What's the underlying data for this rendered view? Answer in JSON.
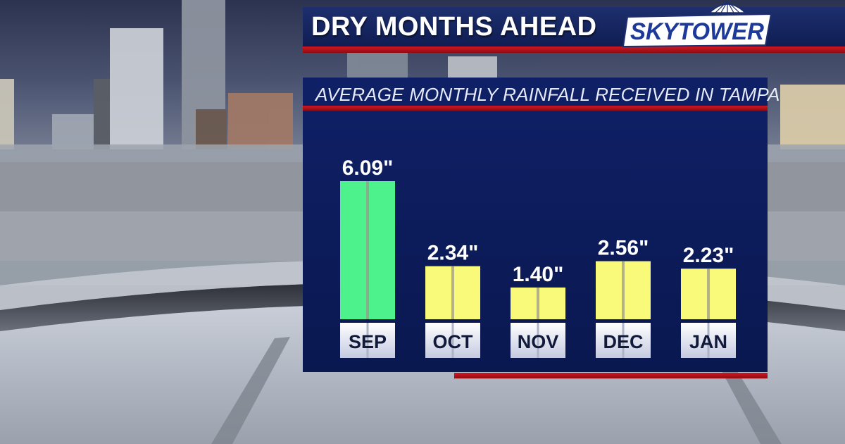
{
  "header": {
    "title": "DRY MONTHS AHEAD",
    "logo_text": "SKYTOWER"
  },
  "panel": {
    "title": "AVERAGE MONTHLY RAINFALL RECEIVED IN TAMPA"
  },
  "colors": {
    "highlight_bar": "#4ef28d",
    "normal_bar": "#fafa7a",
    "panel_bg": "#0d1c5c",
    "accent_red": "#c8141d"
  },
  "chart_data": {
    "type": "bar",
    "categories": [
      "SEP",
      "OCT",
      "NOV",
      "DEC",
      "JAN"
    ],
    "values": [
      6.09,
      2.34,
      1.4,
      2.56,
      2.23
    ],
    "value_labels": [
      "6.09\"",
      "2.34\"",
      "1.40\"",
      "2.56\"",
      "2.23\""
    ],
    "highlight": [
      true,
      false,
      false,
      false,
      false
    ],
    "title": "AVERAGE MONTHLY RAINFALL RECEIVED IN TAMPA",
    "xlabel": "",
    "ylabel": "",
    "ylim": [
      0,
      6.09
    ],
    "grid": false,
    "legend": "none"
  }
}
